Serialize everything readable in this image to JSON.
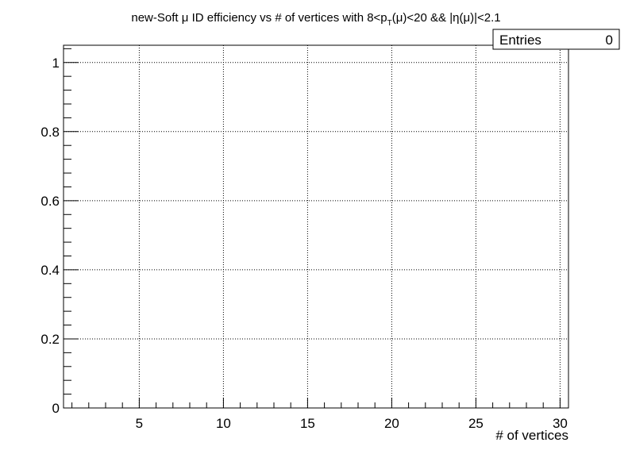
{
  "chart_data": {
    "type": "line",
    "title": {
      "prefix": "new-Soft ",
      "mu": "μ",
      "mid": " ID efficiency vs # of vertices with 8<p",
      "sub": "T",
      "after_sub": "(",
      "mu2": "μ",
      "after_mu2": ")<20 && |η(",
      "mu3": "μ",
      "suffix": ")|<2.1"
    },
    "xlabel": "# of vertices",
    "ylabel": "",
    "xlim": [
      0.5,
      30.5
    ],
    "ylim": [
      0,
      1.05
    ],
    "x_ticks": [
      5,
      10,
      15,
      20,
      25,
      30
    ],
    "x_tick_labels": [
      "5",
      "10",
      "15",
      "20",
      "25",
      "30"
    ],
    "y_ticks": [
      0,
      0.2,
      0.4,
      0.6,
      0.8,
      1
    ],
    "y_tick_labels": [
      "0",
      "0.2",
      "0.4",
      "0.6",
      "0.8",
      "1"
    ],
    "grid": true,
    "series": [],
    "stats_box": {
      "label": "Entries",
      "value": "0"
    }
  }
}
